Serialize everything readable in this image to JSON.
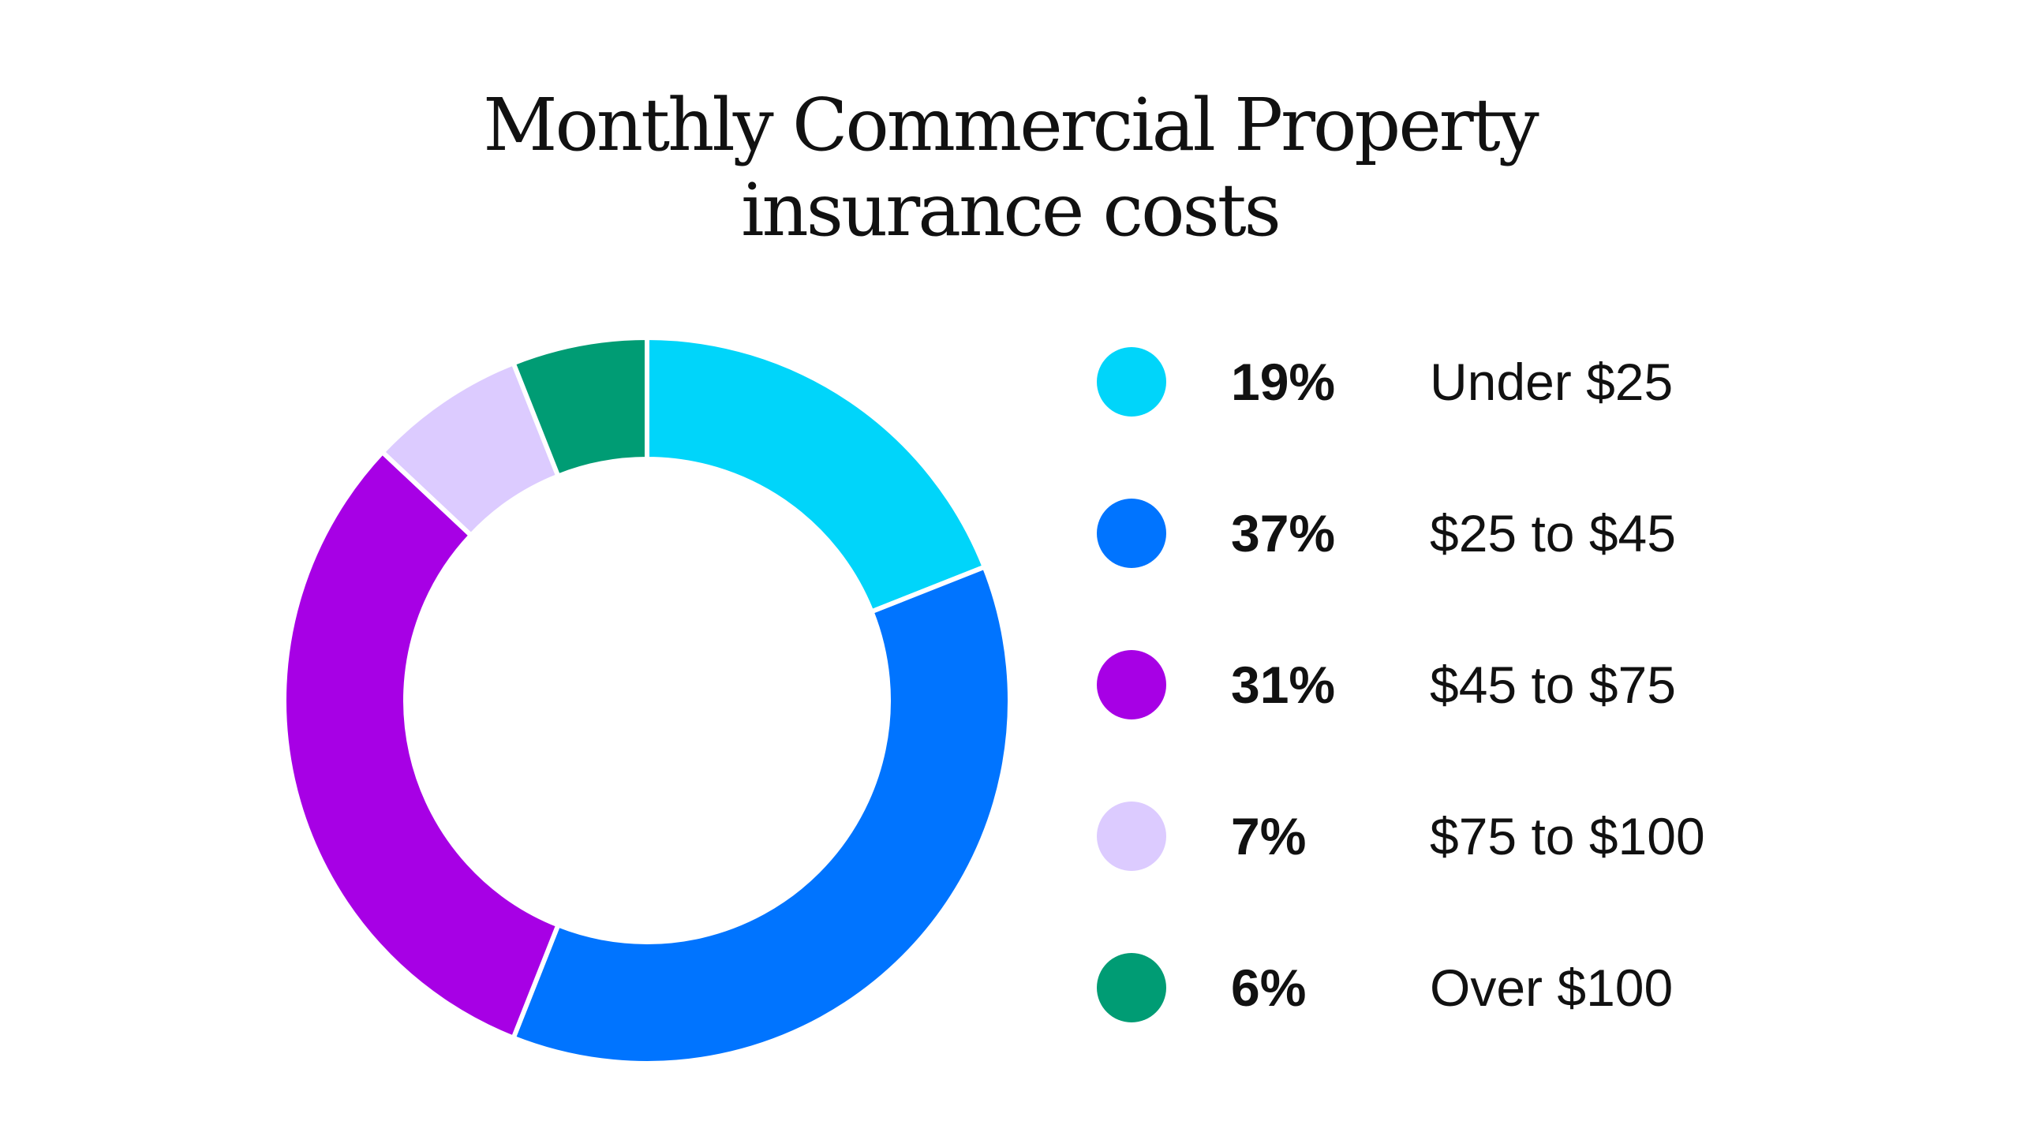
{
  "chart_data": {
    "type": "pie",
    "title_lines": [
      "Monthly Commercial Property",
      "insurance costs"
    ],
    "donut": true,
    "slices": [
      {
        "value": 19,
        "percent_label": "19%",
        "label": "Under $25",
        "color": "#00D5FA"
      },
      {
        "value": 37,
        "percent_label": "37%",
        "label": "$25 to $45",
        "color": "#0074FF"
      },
      {
        "value": 31,
        "percent_label": "31%",
        "label": "$45 to $75",
        "color": "#A700E5"
      },
      {
        "value": 7,
        "percent_label": "7%",
        "label": "$75 to $100",
        "color": "#DCCBFF"
      },
      {
        "value": 6,
        "percent_label": "6%",
        "label": "Over $100",
        "color": "#009C74"
      }
    ],
    "legend_position": "right"
  }
}
